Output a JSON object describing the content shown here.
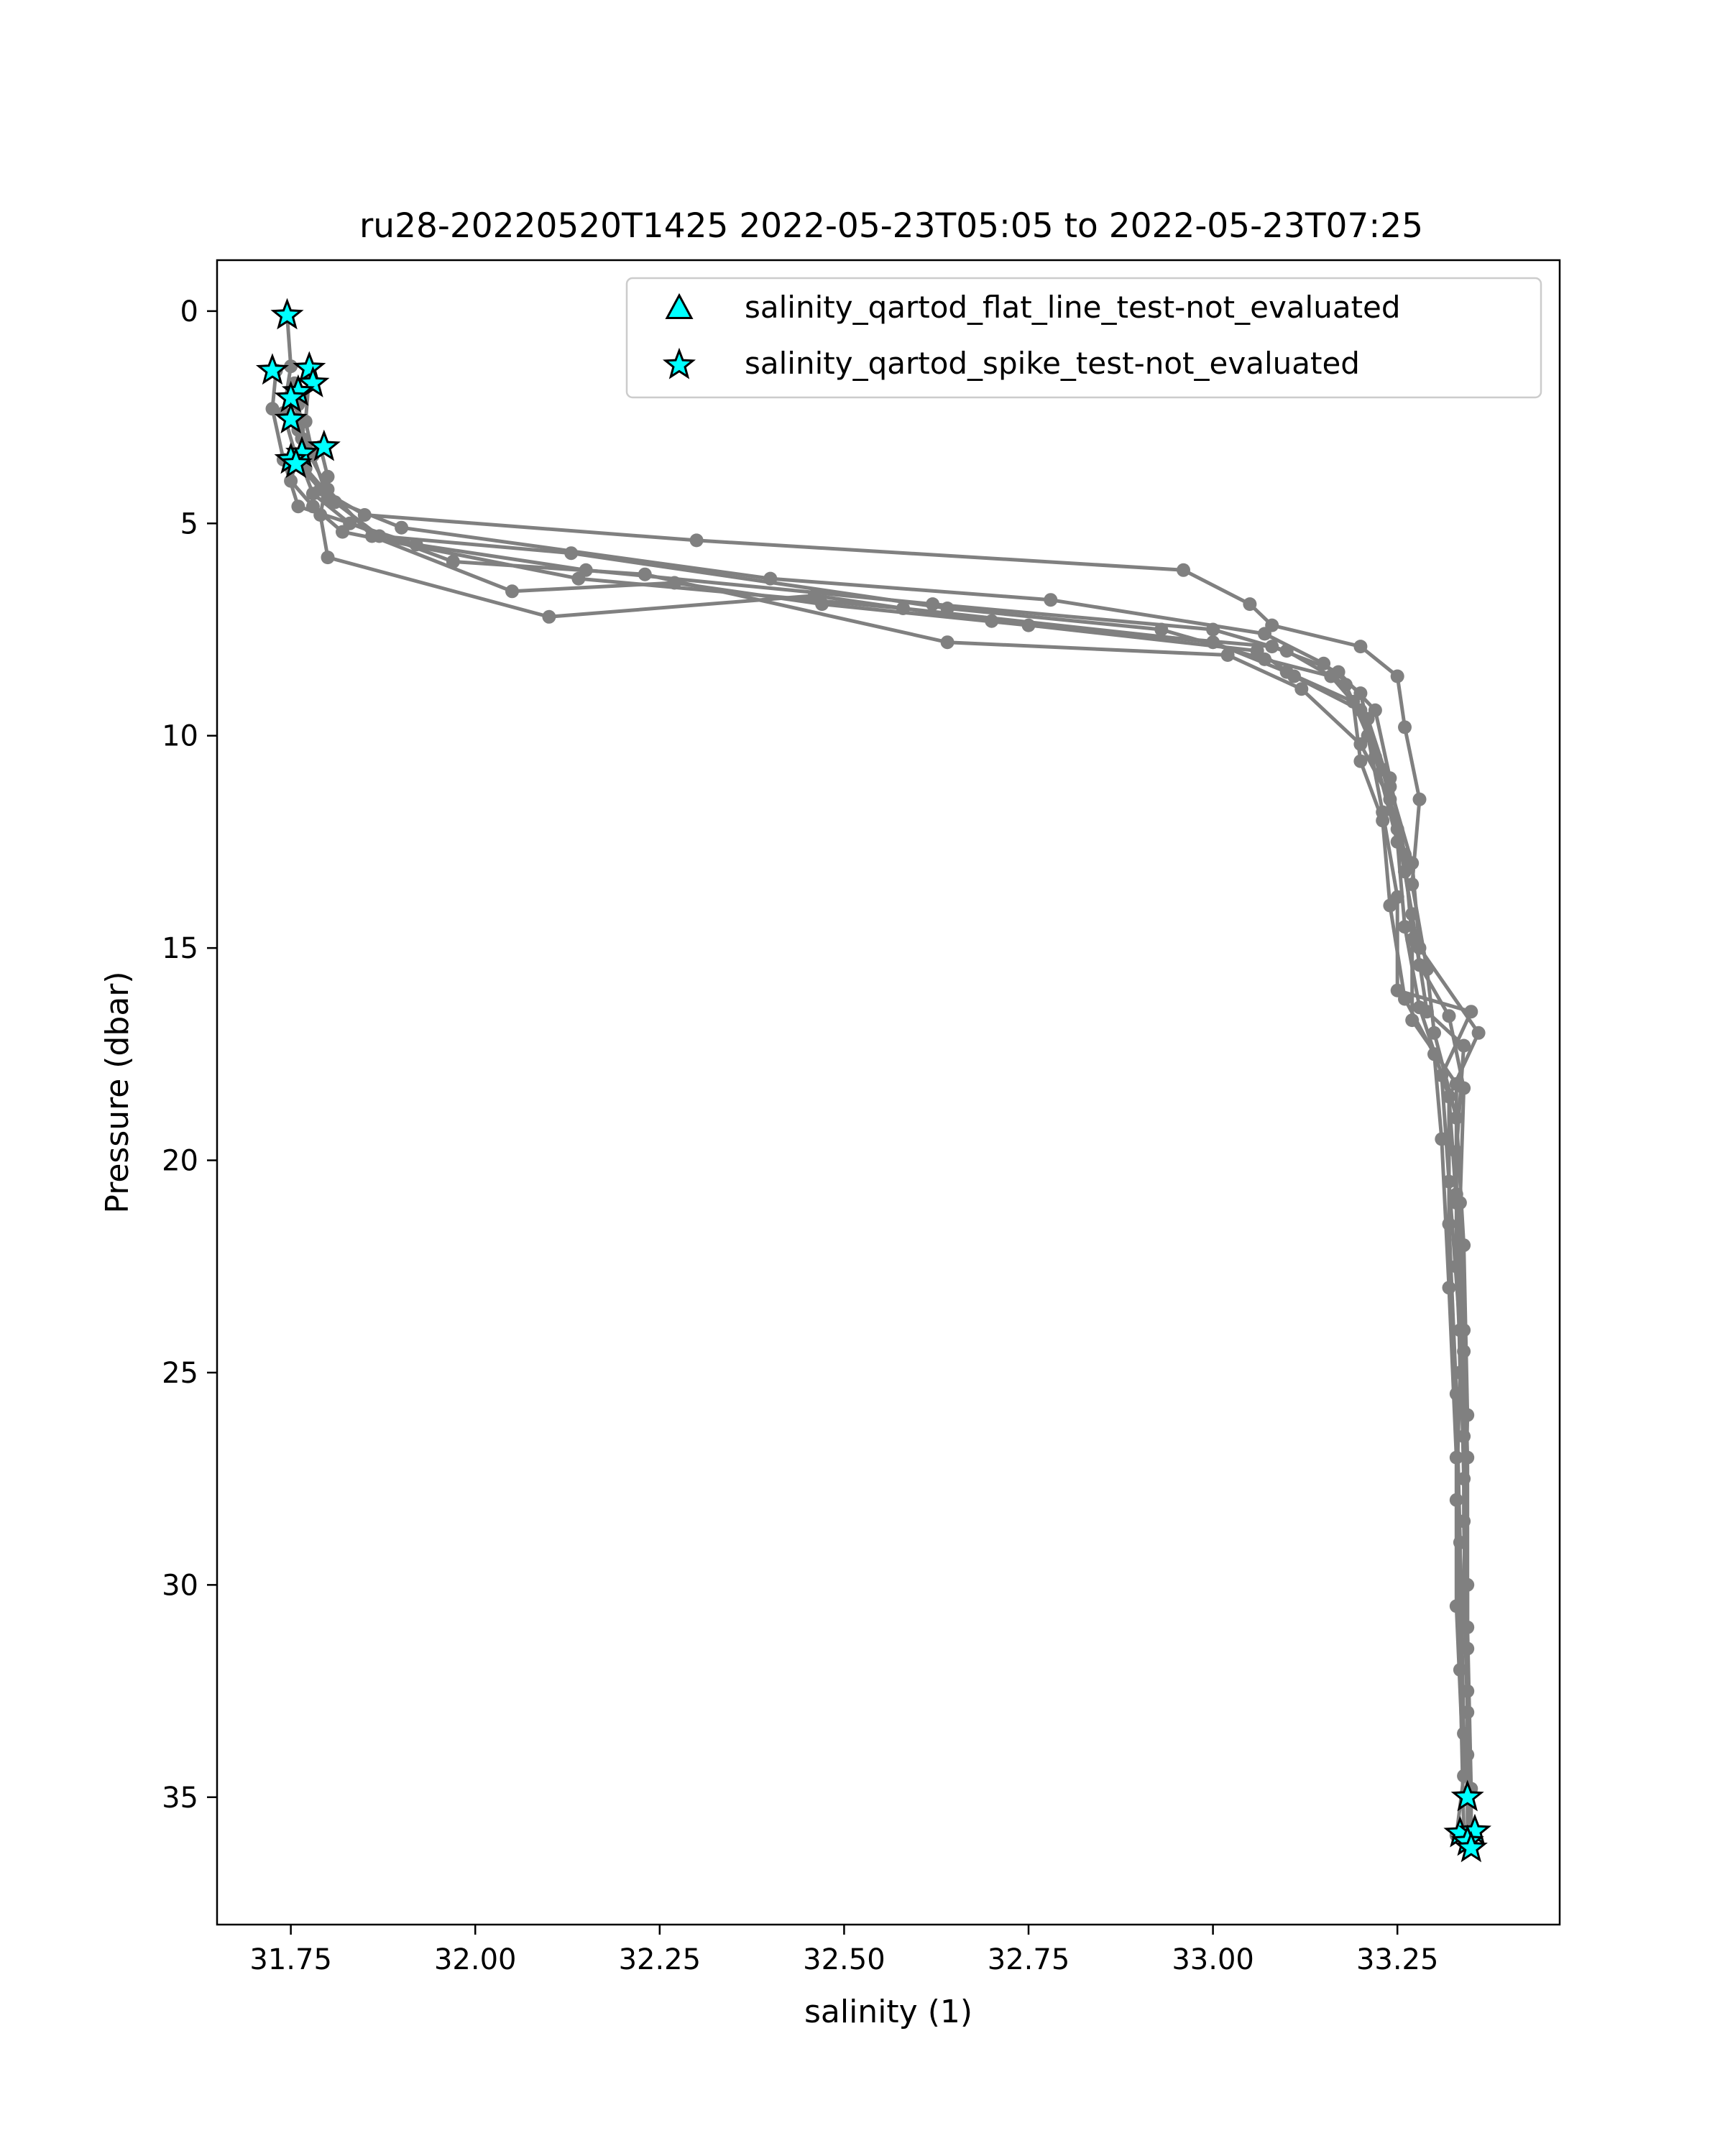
{
  "chart_data": {
    "type": "scatter",
    "title": "ru28-20220520T1425 2022-05-23T05:05 to 2022-05-23T07:25",
    "xlabel": "salinity (1)",
    "ylabel": "Pressure (dbar)",
    "xlim": [
      31.65,
      33.47
    ],
    "ylim": [
      38.0,
      -1.2
    ],
    "y_inverted": true,
    "x_ticks": [
      "31.75",
      "32.00",
      "32.25",
      "32.50",
      "32.75",
      "33.00",
      "33.25"
    ],
    "y_ticks": [
      "0",
      "5",
      "10",
      "15",
      "20",
      "25",
      "30",
      "35"
    ],
    "grid": false,
    "legend_position": "top-right",
    "legend": [
      {
        "label": "salinity_qartod_flat_line_test-not_evaluated",
        "marker": "triangle",
        "color": "#00ffff"
      },
      {
        "label": "salinity_qartod_spike_test-not_evaluated",
        "marker": "star",
        "color": "#00ffff"
      }
    ],
    "line_color": "#808080",
    "profiles": [
      {
        "name": "",
        "points": [
          [
            31.745,
            0.1
          ],
          [
            31.75,
            1.3
          ],
          [
            31.74,
            2.4
          ],
          [
            31.76,
            3.6
          ],
          [
            31.79,
            4.2
          ],
          [
            31.85,
            4.8
          ],
          [
            32.3,
            5.4
          ],
          [
            32.96,
            6.1
          ],
          [
            33.05,
            6.9
          ],
          [
            33.08,
            7.4
          ],
          [
            33.2,
            7.9
          ],
          [
            33.25,
            8.6
          ],
          [
            33.26,
            9.8
          ],
          [
            33.28,
            11.5
          ],
          [
            33.27,
            13.5
          ],
          [
            33.29,
            15.5
          ],
          [
            33.3,
            17.0
          ],
          [
            33.33,
            19.0
          ],
          [
            33.34,
            22.0
          ],
          [
            33.345,
            26.0
          ],
          [
            33.34,
            30.0
          ],
          [
            33.345,
            33.0
          ],
          [
            33.345,
            35.0
          ]
        ]
      },
      {
        "name": "",
        "points": [
          [
            31.775,
            1.5
          ],
          [
            31.77,
            2.6
          ],
          [
            31.78,
            3.4
          ],
          [
            31.8,
            4.4
          ],
          [
            31.9,
            5.1
          ],
          [
            32.4,
            6.3
          ],
          [
            32.78,
            6.8
          ],
          [
            33.07,
            7.6
          ],
          [
            33.15,
            8.3
          ],
          [
            33.2,
            9.0
          ],
          [
            33.22,
            10.5
          ],
          [
            33.25,
            12.5
          ],
          [
            33.26,
            14.5
          ],
          [
            33.28,
            16.4
          ],
          [
            33.32,
            18.5
          ],
          [
            33.33,
            21.0
          ],
          [
            33.335,
            25.0
          ],
          [
            33.33,
            28.0
          ],
          [
            33.335,
            32.0
          ],
          [
            33.34,
            35.8
          ]
        ]
      },
      {
        "name": "",
        "points": [
          [
            31.73,
            1.4
          ],
          [
            31.725,
            2.3
          ],
          [
            31.74,
            3.5
          ],
          [
            31.76,
            4.6
          ],
          [
            31.92,
            5.5
          ],
          [
            32.15,
            6.1
          ],
          [
            32.62,
            6.9
          ],
          [
            33.0,
            7.5
          ],
          [
            33.1,
            8.0
          ],
          [
            33.18,
            8.8
          ],
          [
            33.21,
            10.0
          ],
          [
            33.23,
            11.8
          ],
          [
            33.25,
            13.8
          ],
          [
            33.25,
            16.0
          ],
          [
            33.35,
            16.5
          ],
          [
            33.31,
            18.0
          ],
          [
            33.32,
            20.5
          ],
          [
            33.335,
            24.0
          ],
          [
            33.34,
            27.5
          ],
          [
            33.345,
            31.5
          ],
          [
            33.35,
            36.0
          ]
        ]
      },
      {
        "name": "",
        "points": [
          [
            31.755,
            1.7
          ],
          [
            31.76,
            2.8
          ],
          [
            31.77,
            3.7
          ],
          [
            31.81,
            4.5
          ],
          [
            31.87,
            5.3
          ],
          [
            32.13,
            5.7
          ],
          [
            32.64,
            7.0
          ],
          [
            32.93,
            7.5
          ],
          [
            33.07,
            8.2
          ],
          [
            33.16,
            8.6
          ],
          [
            33.21,
            9.6
          ],
          [
            33.24,
            11.2
          ],
          [
            33.27,
            13.0
          ],
          [
            33.28,
            15.0
          ],
          [
            33.36,
            17.0
          ],
          [
            33.32,
            18.5
          ],
          [
            33.32,
            21.5
          ],
          [
            33.33,
            25.5
          ],
          [
            33.335,
            29.0
          ],
          [
            33.34,
            33.5
          ],
          [
            33.35,
            36.2
          ]
        ]
      },
      {
        "name": "",
        "points": [
          [
            31.755,
            2.0
          ],
          [
            31.765,
            3.0
          ],
          [
            31.75,
            4.0
          ],
          [
            31.78,
            4.6
          ],
          [
            31.82,
            5.2
          ],
          [
            32.14,
            6.3
          ],
          [
            32.58,
            7.0
          ],
          [
            33.0,
            7.8
          ],
          [
            33.1,
            8.5
          ],
          [
            33.19,
            9.2
          ],
          [
            33.2,
            10.6
          ],
          [
            33.23,
            12.0
          ],
          [
            33.24,
            14.0
          ],
          [
            33.26,
            16.2
          ],
          [
            33.3,
            17.5
          ],
          [
            33.31,
            19.5
          ],
          [
            33.32,
            23.0
          ],
          [
            33.33,
            27.0
          ],
          [
            33.33,
            30.5
          ],
          [
            33.34,
            34.5
          ],
          [
            33.33,
            35.9
          ]
        ]
      },
      {
        "name": "",
        "points": [
          [
            31.76,
            2.2
          ],
          [
            31.77,
            3.2
          ],
          [
            31.8,
            4.2
          ],
          [
            31.86,
            5.3
          ],
          [
            32.05,
            6.6
          ],
          [
            32.27,
            6.4
          ],
          [
            32.47,
            6.9
          ],
          [
            32.75,
            7.4
          ],
          [
            33.08,
            7.9
          ],
          [
            33.17,
            8.5
          ],
          [
            33.22,
            9.4
          ],
          [
            33.24,
            11.0
          ],
          [
            33.26,
            12.8
          ],
          [
            33.27,
            14.8
          ],
          [
            33.27,
            16.7
          ],
          [
            33.33,
            18.2
          ],
          [
            33.33,
            20.8
          ],
          [
            33.34,
            24.5
          ],
          [
            33.34,
            28.5
          ],
          [
            33.345,
            32.5
          ],
          [
            33.345,
            36.1
          ]
        ]
      },
      {
        "name": "",
        "points": [
          [
            31.79,
            3.2
          ],
          [
            31.8,
            3.9
          ],
          [
            31.79,
            4.8
          ],
          [
            31.8,
            5.8
          ],
          [
            32.1,
            7.2
          ],
          [
            32.46,
            6.7
          ],
          [
            32.7,
            7.3
          ],
          [
            33.06,
            8.0
          ],
          [
            33.11,
            8.6
          ],
          [
            33.2,
            9.4
          ],
          [
            33.23,
            10.8
          ],
          [
            33.25,
            12.2
          ],
          [
            33.27,
            14.2
          ],
          [
            33.29,
            16.5
          ],
          [
            33.34,
            17.3
          ],
          [
            33.33,
            19.8
          ],
          [
            33.33,
            22.5
          ],
          [
            33.34,
            26.5
          ],
          [
            33.345,
            30.0
          ],
          [
            33.345,
            34.0
          ],
          [
            33.35,
            35.9
          ]
        ]
      },
      {
        "name": "",
        "points": [
          [
            31.76,
            3.4
          ],
          [
            31.78,
            4.3
          ],
          [
            31.83,
            5.0
          ],
          [
            31.97,
            5.9
          ],
          [
            32.23,
            6.2
          ],
          [
            32.64,
            7.8
          ],
          [
            33.02,
            8.1
          ],
          [
            33.12,
            8.9
          ],
          [
            33.2,
            10.2
          ],
          [
            33.24,
            11.5
          ],
          [
            33.26,
            13.2
          ],
          [
            33.28,
            15.4
          ],
          [
            33.32,
            16.6
          ],
          [
            33.34,
            18.3
          ],
          [
            33.335,
            21.0
          ],
          [
            33.34,
            24.0
          ],
          [
            33.345,
            27.0
          ],
          [
            33.345,
            31.0
          ],
          [
            33.35,
            34.8
          ],
          [
            33.35,
            36.2
          ]
        ]
      }
    ],
    "star_points": [
      [
        31.745,
        0.1
      ],
      [
        31.725,
        1.4
      ],
      [
        31.775,
        1.35
      ],
      [
        31.78,
        1.7
      ],
      [
        31.76,
        1.9
      ],
      [
        31.75,
        2.05
      ],
      [
        31.75,
        2.55
      ],
      [
        31.795,
        3.2
      ],
      [
        31.765,
        3.35
      ],
      [
        31.75,
        3.5
      ],
      [
        31.757,
        3.6
      ],
      [
        33.345,
        35.0
      ],
      [
        33.335,
        35.85
      ],
      [
        33.355,
        35.8
      ],
      [
        33.345,
        36.05
      ],
      [
        33.35,
        36.2
      ]
    ]
  }
}
